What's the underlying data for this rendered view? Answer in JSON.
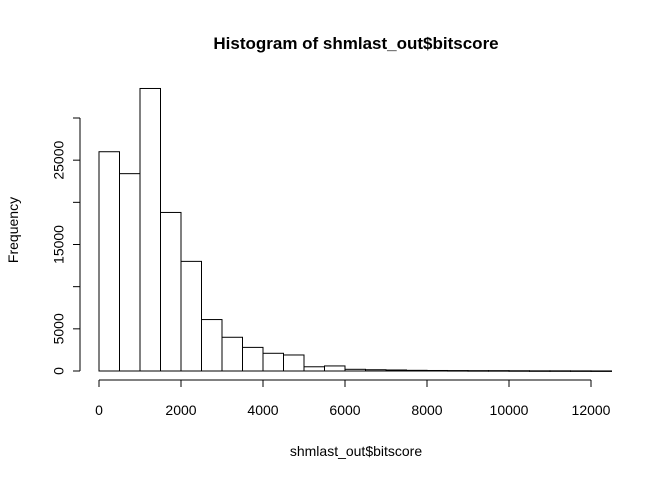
{
  "chart_data": {
    "type": "histogram",
    "title": "Histogram of shmlast_out$bitscore",
    "xlabel": "shmlast_out$bitscore",
    "ylabel": "Frequency",
    "bin_width": 500,
    "bin_edges_start": 0,
    "values": [
      26000,
      23400,
      33500,
      18800,
      13000,
      6100,
      4000,
      2800,
      2100,
      1900,
      500,
      600,
      200,
      150,
      120,
      80,
      60,
      50,
      40,
      40,
      30,
      20,
      20,
      15,
      10
    ],
    "xlim": [
      0,
      12500
    ],
    "ylim": [
      0,
      33500
    ],
    "x_ticks": [
      0,
      2000,
      4000,
      6000,
      8000,
      10000,
      12000
    ],
    "x_tick_labels": [
      "0",
      "2000",
      "4000",
      "6000",
      "8000",
      "10000",
      "12000"
    ],
    "y_ticks": [
      0,
      5000,
      10000,
      15000,
      20000,
      25000,
      30000
    ],
    "y_tick_labels": [
      "0",
      "5000",
      "15000",
      "25000"
    ],
    "y_labeled_ticks": [
      0,
      5000,
      15000,
      25000
    ],
    "grid": false,
    "legend": "none"
  }
}
